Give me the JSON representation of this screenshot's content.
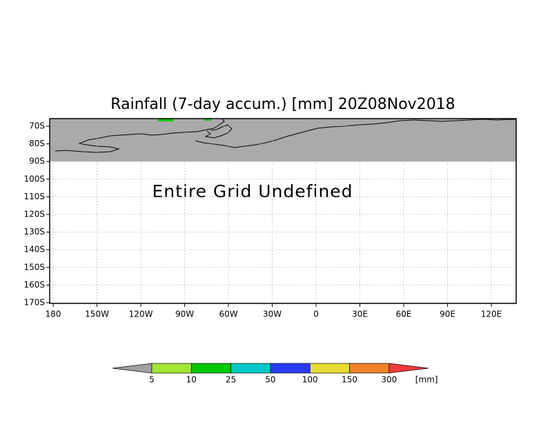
{
  "chart_data": {
    "type": "map",
    "title": "Rainfall (7-day accum.) [mm] 20Z08Nov2018",
    "annotation": "Entire Grid Undefined",
    "xlim": [
      -182.4,
      137
    ],
    "ylim": [
      -170.4,
      -65.7
    ],
    "xticks": [
      {
        "value": -180,
        "label": "180"
      },
      {
        "value": -150,
        "label": "150W"
      },
      {
        "value": -120,
        "label": "120W"
      },
      {
        "value": -90,
        "label": "90W"
      },
      {
        "value": -60,
        "label": "60W"
      },
      {
        "value": -30,
        "label": "30W"
      },
      0,
      {
        "value": 30,
        "label": "30E"
      },
      {
        "value": 60,
        "label": "60E"
      },
      {
        "value": 90,
        "label": "90E"
      },
      {
        "value": 120,
        "label": "120E"
      }
    ],
    "yticks": [
      {
        "value": -70,
        "label": "70S"
      },
      {
        "value": -80,
        "label": "80S"
      },
      {
        "value": -90,
        "label": "90S"
      },
      {
        "value": -100,
        "label": "100S"
      },
      {
        "value": -110,
        "label": "110S"
      },
      {
        "value": -120,
        "label": "120S"
      },
      {
        "value": -130,
        "label": "130S"
      },
      {
        "value": -140,
        "label": "140S"
      },
      {
        "value": -150,
        "label": "150S"
      },
      {
        "value": -160,
        "label": "160S"
      },
      {
        "value": -170,
        "label": "170S"
      }
    ],
    "grid": true,
    "undefined_color": "#aaaaaa",
    "colorbar": {
      "levels": [
        5,
        10,
        25,
        50,
        100,
        150,
        300
      ],
      "colors": [
        "#a0a0a0",
        "#a0e632",
        "#00c800",
        "#00c8c8",
        "#2a3cff",
        "#e6dc32",
        "#f08228",
        "#f03c3c"
      ],
      "unit": "[mm]"
    }
  }
}
